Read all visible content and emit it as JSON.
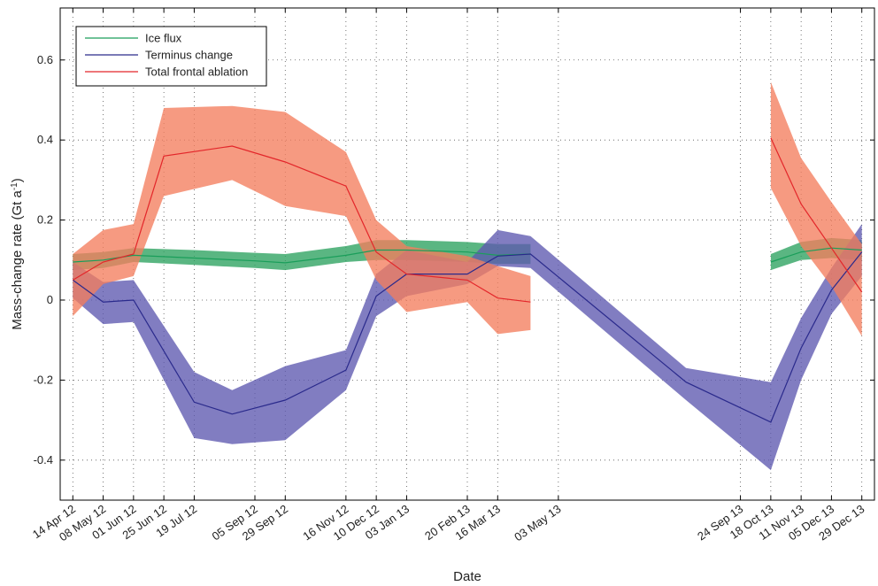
{
  "chart_data": {
    "type": "line",
    "title": "",
    "xlabel": "Date",
    "ylabel": "Mass-change rate (Gt a",
    "ylabel_sup": "-1",
    "ylabel_end": ")",
    "ylim": [
      -0.5,
      0.73
    ],
    "xlim": [
      "2012-04-04",
      "2014-01-08"
    ],
    "grid": true,
    "legend_position": "top-left",
    "x_ticks": [
      {
        "date": "2012-04-14",
        "label": "14 Apr 12"
      },
      {
        "date": "2012-05-08",
        "label": "08 May 12"
      },
      {
        "date": "2012-06-01",
        "label": "01 Jun 12"
      },
      {
        "date": "2012-06-25",
        "label": "25 Jun 12"
      },
      {
        "date": "2012-07-19",
        "label": "19 Jul 12"
      },
      {
        "date": "2012-09-05",
        "label": "05 Sep 12"
      },
      {
        "date": "2012-09-29",
        "label": "29 Sep 12"
      },
      {
        "date": "2012-11-16",
        "label": "16 Nov 12"
      },
      {
        "date": "2012-12-10",
        "label": "10 Dec 12"
      },
      {
        "date": "2013-01-03",
        "label": "03 Jan 13"
      },
      {
        "date": "2013-02-20",
        "label": "20 Feb 13"
      },
      {
        "date": "2013-03-16",
        "label": "16 Mar 13"
      },
      {
        "date": "2013-05-03",
        "label": "03 May 13"
      },
      {
        "date": "2013-09-24",
        "label": "24 Sep 13"
      },
      {
        "date": "2013-10-18",
        "label": "18 Oct 13"
      },
      {
        "date": "2013-11-11",
        "label": "11 Nov 13"
      },
      {
        "date": "2013-12-05",
        "label": "05 Dec 13"
      },
      {
        "date": "2013-12-29",
        "label": "29 Dec 13"
      }
    ],
    "y_ticks": [
      {
        "value": 0.6,
        "label": "0.6"
      },
      {
        "value": 0.4,
        "label": "0.4"
      },
      {
        "value": 0.2,
        "label": "0.2"
      },
      {
        "value": 0,
        "label": "0"
      },
      {
        "value": -0.2,
        "label": "-0.2"
      },
      {
        "value": -0.4,
        "label": "-0.4"
      }
    ],
    "series": [
      {
        "name": "Ice flux",
        "color": "#1a9e5a",
        "band_color": "#2ca25f",
        "segments": [
          {
            "x": [
              "2012-04-14",
              "2012-05-08",
              "2012-06-01",
              "2012-07-19",
              "2012-09-05",
              "2012-09-29",
              "2012-11-16",
              "2012-12-10",
              "2013-01-03",
              "2013-02-20",
              "2013-03-16",
              "2013-04-11"
            ],
            "y": [
              0.095,
              0.1,
              0.112,
              0.105,
              0.098,
              0.093,
              0.112,
              0.125,
              0.125,
              0.12,
              0.112,
              0.115
            ],
            "lower": [
              0.075,
              0.08,
              0.095,
              0.088,
              0.08,
              0.075,
              0.095,
              0.1,
              0.1,
              0.095,
              0.09,
              0.09
            ],
            "upper": [
              0.115,
              0.12,
              0.13,
              0.125,
              0.118,
              0.115,
              0.135,
              0.15,
              0.15,
              0.145,
              0.14,
              0.14
            ]
          },
          {
            "x": [
              "2013-10-18",
              "2013-11-11",
              "2013-12-05",
              "2013-12-29"
            ],
            "y": [
              0.095,
              0.12,
              0.13,
              0.125
            ],
            "lower": [
              0.075,
              0.1,
              0.105,
              0.1
            ],
            "upper": [
              0.115,
              0.145,
              0.155,
              0.15
            ]
          }
        ]
      },
      {
        "name": "Terminus change",
        "color": "#2a2a8c",
        "band_color": "#5e58b0",
        "segments": [
          {
            "x": [
              "2012-04-14",
              "2012-05-08",
              "2012-06-01",
              "2012-07-19",
              "2012-08-18",
              "2012-09-29",
              "2012-11-16",
              "2012-12-10",
              "2013-01-03",
              "2013-02-20",
              "2013-03-16",
              "2013-04-11",
              "2013-08-12",
              "2013-10-18",
              "2013-11-11",
              "2013-12-05",
              "2013-12-29"
            ],
            "y": [
              0.05,
              -0.005,
              0.0,
              -0.255,
              -0.285,
              -0.25,
              -0.175,
              0.01,
              0.065,
              0.065,
              0.11,
              0.115,
              -0.205,
              -0.305,
              -0.12,
              0.025,
              0.12
            ],
            "lower": [
              0.005,
              -0.06,
              -0.055,
              -0.345,
              -0.36,
              -0.35,
              -0.225,
              -0.04,
              0.01,
              0.04,
              0.085,
              0.08,
              -0.25,
              -0.425,
              -0.2,
              -0.035,
              0.06
            ],
            "upper": [
              0.095,
              0.045,
              0.05,
              -0.18,
              -0.225,
              -0.165,
              -0.125,
              0.065,
              0.125,
              0.095,
              0.175,
              0.16,
              -0.17,
              -0.205,
              -0.045,
              0.08,
              0.19
            ]
          }
        ]
      },
      {
        "name": "Total frontal ablation",
        "color": "#e3262a",
        "band_color": "#f47e5d",
        "segments": [
          {
            "x": [
              "2012-04-14",
              "2012-05-08",
              "2012-06-01",
              "2012-06-25",
              "2012-08-18",
              "2012-09-29",
              "2012-11-16",
              "2012-12-10",
              "2013-01-03",
              "2013-02-20",
              "2013-03-16",
              "2013-04-11"
            ],
            "y": [
              0.05,
              0.095,
              0.115,
              0.36,
              0.385,
              0.345,
              0.285,
              0.12,
              0.065,
              0.05,
              0.005,
              -0.005
            ],
            "lower": [
              -0.04,
              0.04,
              0.06,
              0.26,
              0.3,
              0.235,
              0.21,
              0.05,
              -0.03,
              -0.005,
              -0.085,
              -0.075
            ],
            "upper": [
              0.115,
              0.175,
              0.19,
              0.48,
              0.485,
              0.47,
              0.37,
              0.2,
              0.135,
              0.11,
              0.085,
              0.06
            ]
          },
          {
            "x": [
              "2013-10-18",
              "2013-11-11",
              "2013-12-05",
              "2013-12-29"
            ],
            "y": [
              0.405,
              0.24,
              0.13,
              0.02
            ],
            "lower": [
              0.28,
              0.135,
              0.035,
              -0.09
            ],
            "upper": [
              0.545,
              0.355,
              0.245,
              0.14
            ]
          }
        ]
      }
    ]
  }
}
